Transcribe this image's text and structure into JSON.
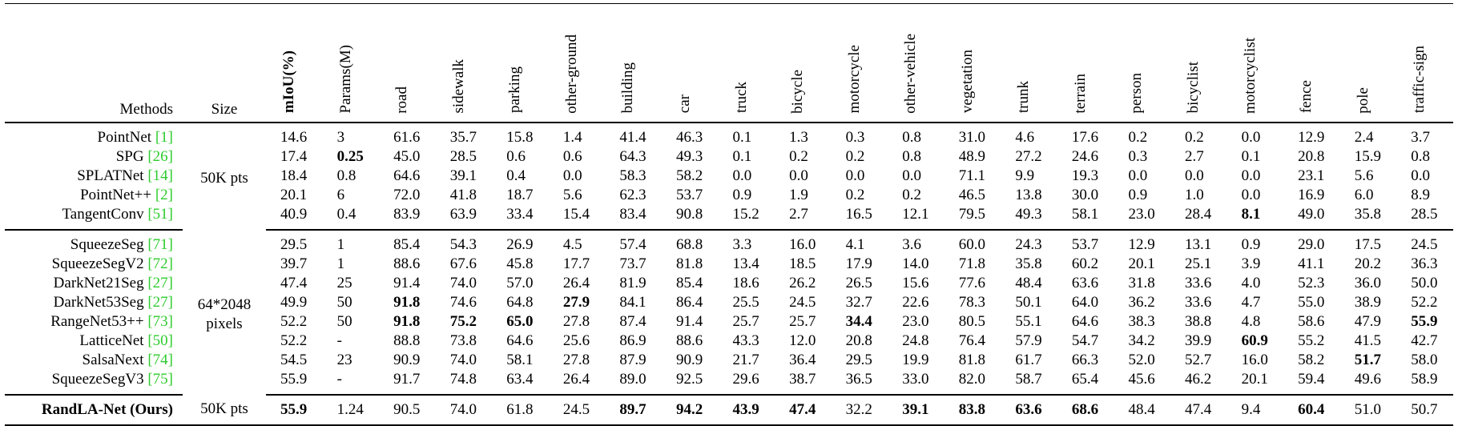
{
  "table": {
    "header": {
      "methods": "Methods",
      "size": "Size"
    },
    "columns": [
      {
        "text": "mIoU(%)",
        "bold": true
      },
      "Params(M)",
      "road",
      "sidewalk",
      "parking",
      "other-ground",
      "building",
      "car",
      "truck",
      "bicycle",
      "motorcycle",
      "other-vehicle",
      "vegetation",
      "trunk",
      "terrain",
      "person",
      "bicyclist",
      "motorcyclist",
      "fence",
      "pole",
      "traffic-sign"
    ],
    "groups": [
      {
        "size": [
          "50K pts"
        ],
        "rows": [
          {
            "method": "PointNet",
            "cite": "[1]",
            "cells": [
              "14.6",
              "3",
              "61.6",
              "35.7",
              "15.8",
              "1.4",
              "41.4",
              "46.3",
              "0.1",
              "1.3",
              "0.3",
              "0.8",
              "31.0",
              "4.6",
              "17.6",
              "0.2",
              "0.2",
              "0.0",
              "12.9",
              "2.4",
              "3.7"
            ]
          },
          {
            "method": "SPG",
            "cite": "[26]",
            "cells": [
              "17.4",
              {
                "text": "0.25",
                "bold": true
              },
              "45.0",
              "28.5",
              "0.6",
              "0.6",
              "64.3",
              "49.3",
              "0.1",
              "0.2",
              "0.2",
              "0.8",
              "48.9",
              "27.2",
              "24.6",
              "0.3",
              "2.7",
              "0.1",
              "20.8",
              "15.9",
              "0.8"
            ]
          },
          {
            "method": "SPLATNet",
            "cite": "[14]",
            "cells": [
              "18.4",
              "0.8",
              "64.6",
              "39.1",
              "0.4",
              "0.0",
              "58.3",
              "58.2",
              "0.0",
              "0.0",
              "0.0",
              "0.0",
              "71.1",
              "9.9",
              "19.3",
              "0.0",
              "0.0",
              "0.0",
              "23.1",
              "5.6",
              "0.0"
            ]
          },
          {
            "method": "PointNet++",
            "cite": "[2]",
            "cells": [
              "20.1",
              "6",
              "72.0",
              "41.8",
              "18.7",
              "5.6",
              "62.3",
              "53.7",
              "0.9",
              "1.9",
              "0.2",
              "0.2",
              "46.5",
              "13.8",
              "30.0",
              "0.9",
              "1.0",
              "0.0",
              "16.9",
              "6.0",
              "8.9"
            ]
          },
          {
            "method": "TangentConv",
            "cite": "[51]",
            "cells": [
              "40.9",
              "0.4",
              "83.9",
              "63.9",
              "33.4",
              "15.4",
              "83.4",
              "90.8",
              "15.2",
              "2.7",
              "16.5",
              "12.1",
              "79.5",
              "49.3",
              "58.1",
              "23.0",
              "28.4",
              {
                "text": "8.1",
                "bold": true
              },
              "49.0",
              "35.8",
              "28.5"
            ]
          }
        ]
      },
      {
        "size": [
          "64*2048",
          "pixels"
        ],
        "rows": [
          {
            "method": "SqueezeSeg",
            "cite": "[71]",
            "cells": [
              "29.5",
              "1",
              "85.4",
              "54.3",
              "26.9",
              "4.5",
              "57.4",
              "68.8",
              "3.3",
              "16.0",
              "4.1",
              "3.6",
              "60.0",
              "24.3",
              "53.7",
              "12.9",
              "13.1",
              "0.9",
              "29.0",
              "17.5",
              "24.5"
            ]
          },
          {
            "method": "SqueezeSegV2",
            "cite": "[72]",
            "cells": [
              "39.7",
              "1",
              "88.6",
              "67.6",
              "45.8",
              "17.7",
              "73.7",
              "81.8",
              "13.4",
              "18.5",
              "17.9",
              "14.0",
              "71.8",
              "35.8",
              "60.2",
              "20.1",
              "25.1",
              "3.9",
              "41.1",
              "20.2",
              "36.3"
            ]
          },
          {
            "method": "DarkNet21Seg",
            "cite": "[27]",
            "cells": [
              "47.4",
              "25",
              "91.4",
              "74.0",
              "57.0",
              "26.4",
              "81.9",
              "85.4",
              "18.6",
              "26.2",
              "26.5",
              "15.6",
              "77.6",
              "48.4",
              "63.6",
              "31.8",
              "33.6",
              "4.0",
              "52.3",
              "36.0",
              "50.0"
            ]
          },
          {
            "method": "DarkNet53Seg",
            "cite": "[27]",
            "cells": [
              "49.9",
              "50",
              {
                "text": "91.8",
                "bold": true
              },
              "74.6",
              "64.8",
              {
                "text": "27.9",
                "bold": true
              },
              "84.1",
              "86.4",
              "25.5",
              "24.5",
              "32.7",
              "22.6",
              "78.3",
              "50.1",
              "64.0",
              "36.2",
              "33.6",
              "4.7",
              "55.0",
              "38.9",
              "52.2"
            ]
          },
          {
            "method": "RangeNet53++",
            "cite": "[73]",
            "cells": [
              "52.2",
              "50",
              {
                "text": "91.8",
                "bold": true
              },
              {
                "text": "75.2",
                "bold": true
              },
              {
                "text": "65.0",
                "bold": true
              },
              "27.8",
              "87.4",
              "91.4",
              "25.7",
              "25.7",
              {
                "text": "34.4",
                "bold": true
              },
              "23.0",
              "80.5",
              "55.1",
              "64.6",
              "38.3",
              "38.8",
              "4.8",
              "58.6",
              "47.9",
              {
                "text": "55.9",
                "bold": true
              }
            ]
          },
          {
            "method": "LatticeNet",
            "cite": "[50]",
            "cells": [
              "52.2",
              "-",
              "88.8",
              "73.8",
              "64.6",
              "25.6",
              "86.9",
              "88.6",
              "43.3",
              "12.0",
              "20.8",
              "24.8",
              "76.4",
              "57.9",
              "54.7",
              "34.2",
              "39.9",
              {
                "text": "60.9",
                "bold": true
              },
              "55.2",
              "41.5",
              "42.7"
            ]
          },
          {
            "method": "SalsaNext",
            "cite": "[74]",
            "cells": [
              "54.5",
              "23",
              "90.9",
              "74.0",
              "58.1",
              "27.8",
              "87.9",
              "90.9",
              "21.7",
              "36.4",
              "29.5",
              "19.9",
              "81.8",
              "61.7",
              "66.3",
              "52.0",
              "52.7",
              "16.0",
              "58.2",
              {
                "text": "51.7",
                "bold": true
              },
              "58.0"
            ]
          },
          {
            "method": "SqueezeSegV3",
            "cite": "[75]",
            "cells": [
              "55.9",
              "-",
              "91.7",
              "74.8",
              "63.4",
              "26.4",
              "89.0",
              "92.5",
              "29.6",
              "38.7",
              "36.5",
              "33.0",
              "82.0",
              "58.7",
              "65.4",
              "45.6",
              "46.2",
              "20.1",
              "59.4",
              "49.6",
              "58.9"
            ]
          }
        ]
      },
      {
        "size": [
          "50K pts"
        ],
        "rows": [
          {
            "method": "RandLA-Net (Ours)",
            "method_bold": true,
            "cells": [
              {
                "text": "55.9",
                "bold": true
              },
              "1.24",
              "90.5",
              "74.0",
              "61.8",
              "24.5",
              {
                "text": "89.7",
                "bold": true
              },
              {
                "text": "94.2",
                "bold": true
              },
              {
                "text": "43.9",
                "bold": true
              },
              {
                "text": "47.4",
                "bold": true
              },
              "32.2",
              {
                "text": "39.1",
                "bold": true
              },
              {
                "text": "83.8",
                "bold": true
              },
              {
                "text": "63.6",
                "bold": true
              },
              {
                "text": "68.6",
                "bold": true
              },
              "48.4",
              "47.4",
              "9.4",
              {
                "text": "60.4",
                "bold": true
              },
              "51.0",
              "50.7"
            ]
          }
        ]
      }
    ]
  }
}
